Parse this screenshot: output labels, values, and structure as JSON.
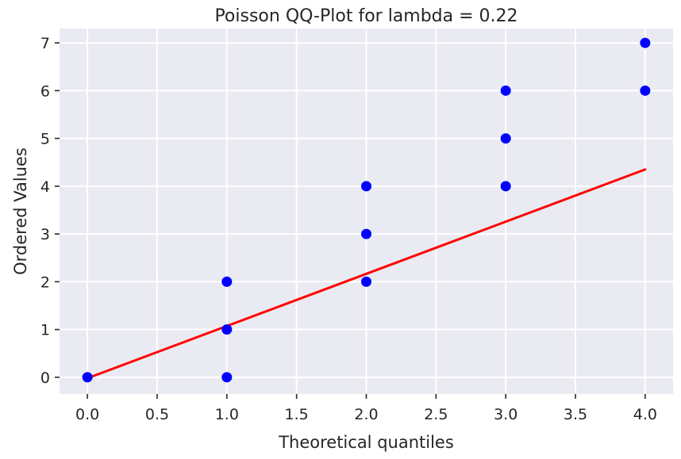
{
  "chart_data": {
    "type": "scatter",
    "title": "Poisson QQ-Plot for lambda = 0.22",
    "xlabel": "Theoretical quantiles",
    "ylabel": "Ordered Values",
    "xlim": [
      -0.2,
      4.2
    ],
    "ylim": [
      -0.35,
      7.3
    ],
    "x_ticks": [
      0.0,
      0.5,
      1.0,
      1.5,
      2.0,
      2.5,
      3.0,
      3.5,
      4.0
    ],
    "x_tick_labels": [
      "0.0",
      "0.5",
      "1.0",
      "1.5",
      "2.0",
      "2.5",
      "3.0",
      "3.5",
      "4.0"
    ],
    "y_ticks": [
      0,
      1,
      2,
      3,
      4,
      5,
      6,
      7
    ],
    "y_tick_labels": [
      "0",
      "1",
      "2",
      "3",
      "4",
      "5",
      "6",
      "7"
    ],
    "grid": true,
    "series": [
      {
        "x": [
          0,
          1,
          1,
          1,
          2,
          2,
          2,
          3,
          3,
          3,
          4,
          4
        ],
        "y": [
          0,
          0,
          1,
          2,
          2,
          3,
          4,
          4,
          5,
          6,
          6,
          7
        ]
      }
    ],
    "fit_line": {
      "x": [
        0,
        4
      ],
      "y": [
        -0.02,
        4.35
      ]
    },
    "colors": {
      "points": "#0000ff",
      "fit_line": "#ff0000",
      "plot_background": "#eaeaf2",
      "grid": "#ffffff",
      "text": "#262626"
    }
  }
}
